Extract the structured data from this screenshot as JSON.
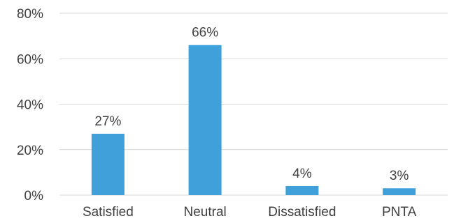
{
  "chart_data": {
    "type": "bar",
    "categories": [
      "Satisfied",
      "Neutral",
      "Dissatisfied",
      "PNTA"
    ],
    "values": [
      27,
      66,
      4,
      3
    ],
    "data_labels": [
      "27%",
      "66%",
      "4%",
      "3%"
    ],
    "ylim": [
      0,
      80
    ],
    "yticks": [
      0,
      20,
      40,
      60,
      80
    ],
    "ytick_labels": [
      "0%",
      "20%",
      "40%",
      "60%",
      "80%"
    ],
    "grid": true,
    "legend": "none",
    "bar_color": "#3fa0da"
  }
}
